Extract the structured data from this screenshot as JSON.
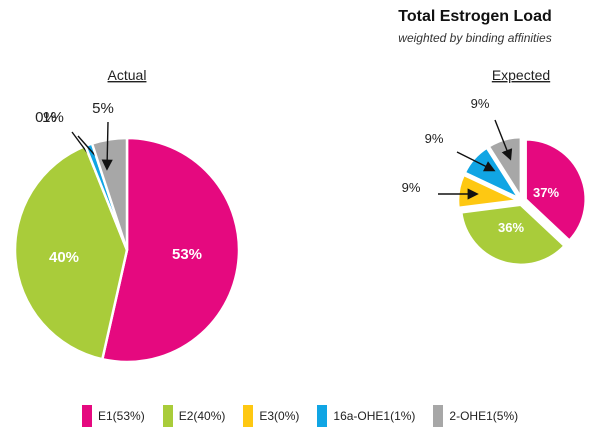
{
  "header": {
    "title": "Total Estrogen Load",
    "subtitle": "weighted by binding affinities"
  },
  "colors": {
    "E1": "#e5097f",
    "E2": "#a9cc3a",
    "E3": "#fec812",
    "16a-OHE1": "#10a5e4",
    "2-OHE1": "#a7a7a7"
  },
  "chart_data": [
    {
      "type": "pie",
      "title": "Actual",
      "categories": [
        "E1",
        "E2",
        "E3",
        "16a-OHE1",
        "2-OHE1"
      ],
      "values": [
        53,
        40,
        0,
        1,
        5
      ],
      "labels": [
        "53%",
        "40%",
        "0%",
        "1%",
        "5%"
      ]
    },
    {
      "type": "pie",
      "title": "Expected",
      "categories": [
        "E1",
        "E2",
        "E3",
        "16a-OHE1",
        "2-OHE1"
      ],
      "values": [
        37,
        36,
        9,
        9,
        9
      ],
      "labels": [
        "37%",
        "36%",
        "9%",
        "9%",
        "9%"
      ]
    }
  ],
  "legend": {
    "placement": "bottom",
    "items": [
      {
        "key": "E1",
        "label": "E1(53%)"
      },
      {
        "key": "E2",
        "label": "E2(40%)"
      },
      {
        "key": "E3",
        "label": "E3(0%)"
      },
      {
        "key": "16a-OHE1",
        "label": "16a-OHE1(1%)"
      },
      {
        "key": "2-OHE1",
        "label": "2-OHE1(5%)"
      }
    ]
  }
}
